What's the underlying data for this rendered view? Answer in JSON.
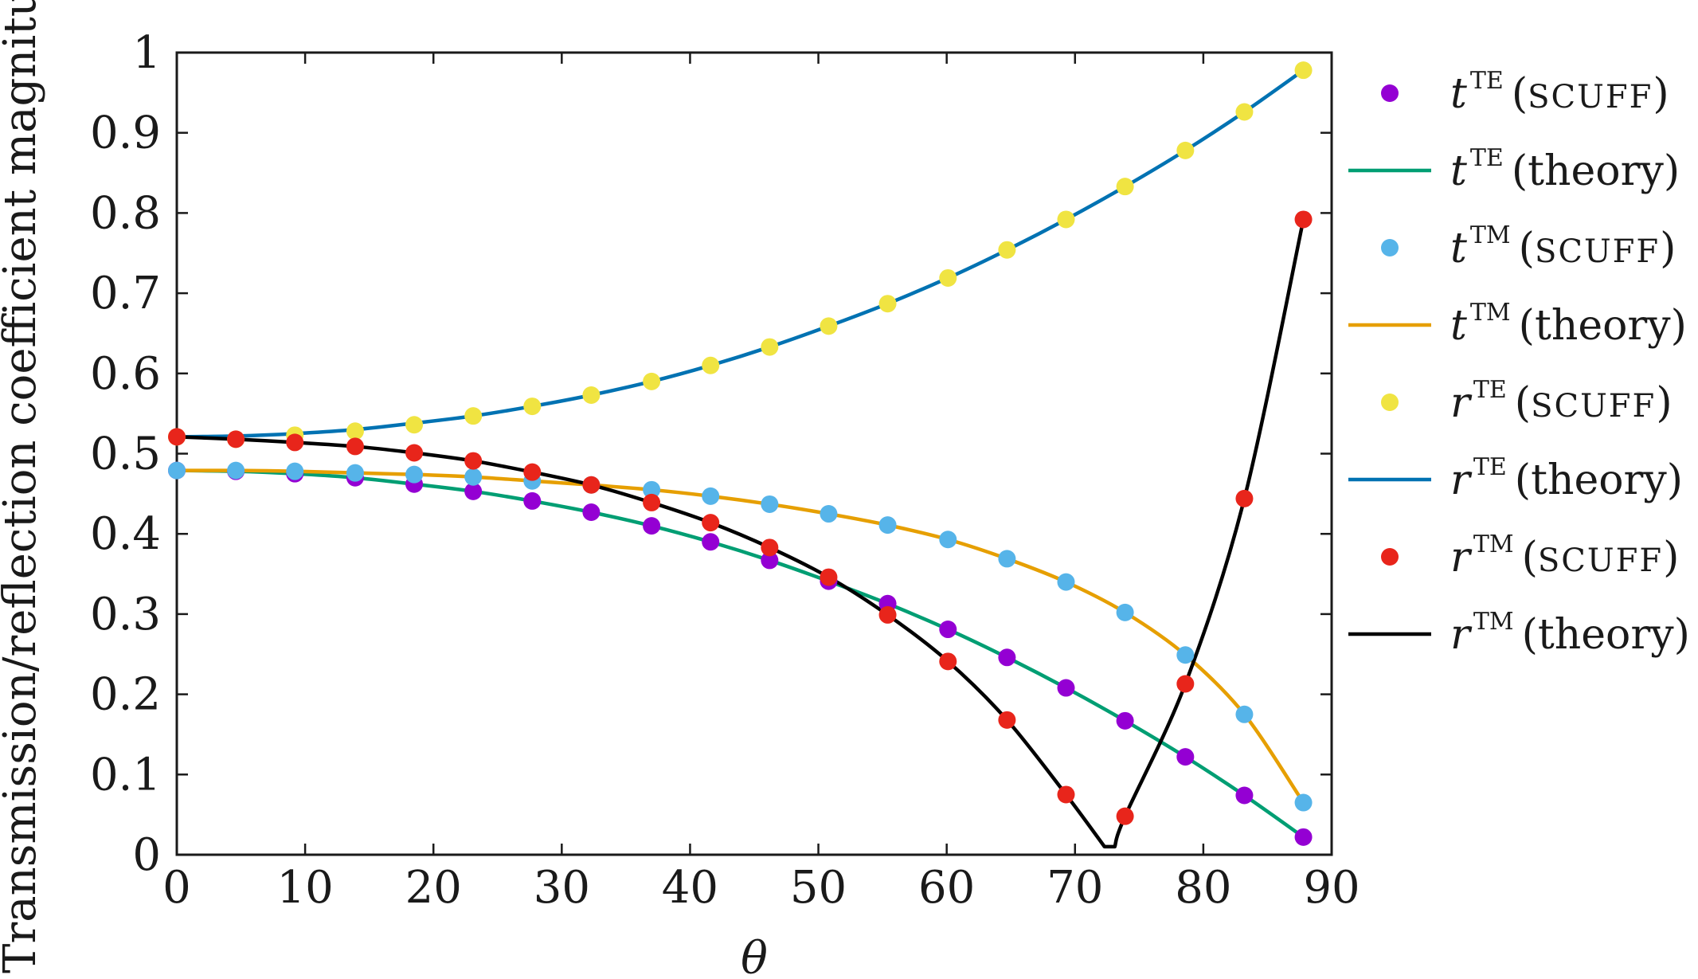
{
  "chart_data": {
    "type": "line",
    "title": "",
    "xlabel": "θ",
    "ylabel": "Transmission/reflection coefficient magnitude",
    "xlim": [
      0,
      90
    ],
    "ylim": [
      0,
      1
    ],
    "x_ticks": [
      "0",
      "10",
      "20",
      "30",
      "40",
      "50",
      "60",
      "70",
      "80",
      "90"
    ],
    "y_ticks": [
      "0",
      "0.1",
      "0.2",
      "0.3",
      "0.4",
      "0.5",
      "0.6",
      "0.7",
      "0.8",
      "0.9",
      "1"
    ],
    "grid": false,
    "legend_position": "outside-right",
    "x_points": [
      0,
      4.6,
      9.2,
      13.9,
      18.5,
      23.1,
      27.7,
      32.3,
      37.0,
      41.6,
      46.2,
      50.8,
      55.4,
      60.1,
      64.7,
      69.3,
      73.9,
      78.6,
      83.2,
      87.8
    ],
    "series": [
      {
        "name": "t^TE (SCUFF)",
        "var": "t",
        "sup": "TE",
        "source": "SCUFF",
        "kind": "markers",
        "color": "#9400d3",
        "values": [
          0.479,
          0.478,
          0.475,
          0.47,
          0.462,
          0.453,
          0.441,
          0.427,
          0.41,
          0.39,
          0.367,
          0.341,
          0.313,
          0.281,
          0.246,
          0.208,
          0.167,
          0.122,
          0.074,
          0.022
        ]
      },
      {
        "name": "t^TE (theory)",
        "var": "t",
        "sup": "TE",
        "source": "theory",
        "kind": "line",
        "color": "#009e73",
        "values": [
          0.479,
          0.478,
          0.475,
          0.47,
          0.462,
          0.453,
          0.441,
          0.427,
          0.41,
          0.39,
          0.367,
          0.341,
          0.313,
          0.281,
          0.246,
          0.208,
          0.167,
          0.122,
          0.074,
          0.022
        ]
      },
      {
        "name": "t^TM (SCUFF)",
        "var": "t",
        "sup": "TM",
        "source": "SCUFF",
        "kind": "markers",
        "color": "#56b4e9",
        "values": [
          0.479,
          0.479,
          0.478,
          0.476,
          0.474,
          0.471,
          0.466,
          0.461,
          0.455,
          0.447,
          0.437,
          0.425,
          0.411,
          0.393,
          0.369,
          0.34,
          0.302,
          0.249,
          0.175,
          0.065
        ]
      },
      {
        "name": "t^TM (theory)",
        "var": "t",
        "sup": "TM",
        "source": "theory",
        "kind": "line",
        "color": "#e69f00",
        "values": [
          0.479,
          0.479,
          0.478,
          0.476,
          0.474,
          0.471,
          0.466,
          0.461,
          0.455,
          0.447,
          0.437,
          0.425,
          0.411,
          0.393,
          0.369,
          0.34,
          0.302,
          0.249,
          0.175,
          0.065
        ]
      },
      {
        "name": "r^TE (SCUFF)",
        "var": "r",
        "sup": "TE",
        "source": "SCUFF",
        "kind": "markers",
        "color": "#f0e442",
        "values": [
          0.521,
          0.518,
          0.523,
          0.528,
          0.536,
          0.547,
          0.559,
          0.573,
          0.59,
          0.61,
          0.633,
          0.659,
          0.687,
          0.719,
          0.754,
          0.792,
          0.833,
          0.878,
          0.926,
          0.978
        ]
      },
      {
        "name": "r^TE (theory)",
        "var": "r",
        "sup": "TE",
        "source": "theory",
        "kind": "line",
        "color": "#0072b2",
        "values": [
          0.521,
          0.522,
          0.525,
          0.53,
          0.538,
          0.547,
          0.559,
          0.573,
          0.59,
          0.61,
          0.633,
          0.659,
          0.687,
          0.719,
          0.754,
          0.792,
          0.833,
          0.878,
          0.926,
          0.978
        ]
      },
      {
        "name": "r^TM (SCUFF)",
        "var": "r",
        "sup": "TM",
        "source": "SCUFF",
        "kind": "markers",
        "color": "#e8251b",
        "values": [
          0.521,
          0.518,
          0.514,
          0.509,
          0.501,
          0.491,
          0.477,
          0.461,
          0.439,
          0.414,
          0.383,
          0.346,
          0.299,
          0.241,
          0.168,
          0.075,
          0.048,
          0.213,
          0.444,
          0.792
        ]
      },
      {
        "name": "r^TM (theory)",
        "var": "r",
        "sup": "TM",
        "source": "theory",
        "kind": "line",
        "color": "#000000",
        "x": [
          0,
          4.6,
          9.2,
          13.9,
          18.5,
          23.1,
          27.7,
          32.3,
          37.0,
          41.6,
          46.2,
          50.8,
          55.4,
          60.1,
          64.7,
          69.3,
          72.3,
          73.1,
          73.9,
          78.6,
          83.2,
          87.8
        ],
        "values": [
          0.521,
          0.518,
          0.514,
          0.509,
          0.501,
          0.491,
          0.477,
          0.461,
          0.439,
          0.414,
          0.383,
          0.346,
          0.299,
          0.241,
          0.168,
          0.075,
          0.01,
          0.01,
          0.048,
          0.213,
          0.444,
          0.792
        ]
      }
    ]
  }
}
